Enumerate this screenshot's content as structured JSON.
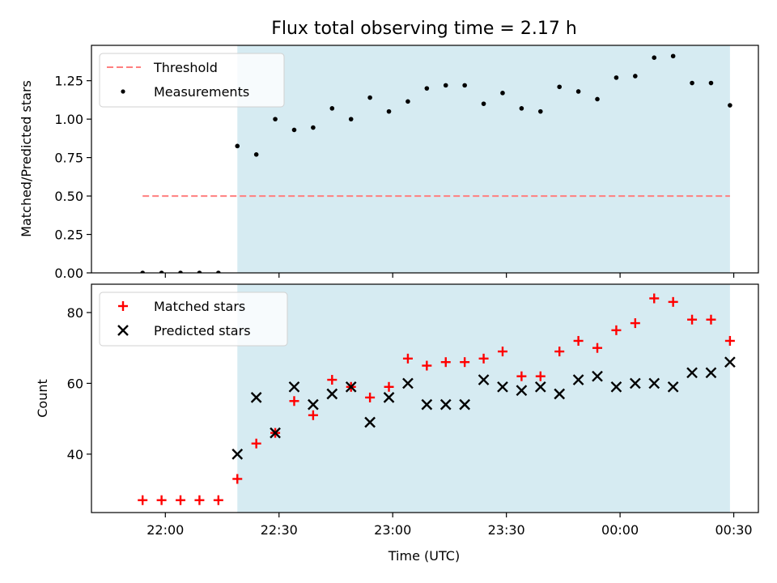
{
  "chart_data": {
    "type": "scatter",
    "title": "Flux total observing time = 2.17 h",
    "xlabel": "Time (UTC)",
    "x_ticks": [
      "22:00",
      "22:30",
      "23:00",
      "23:30",
      "00:00",
      "00:30"
    ],
    "shaded_span": {
      "from": "22:19",
      "to": "00:29",
      "color": "#add8e6"
    },
    "times": [
      "21:54",
      "21:59",
      "22:04",
      "22:09",
      "22:14",
      "22:19",
      "22:24",
      "22:29",
      "22:34",
      "22:39",
      "22:44",
      "22:49",
      "22:54",
      "22:59",
      "23:04",
      "23:09",
      "23:14",
      "23:19",
      "23:24",
      "23:29",
      "23:34",
      "23:39",
      "23:44",
      "23:49",
      "23:54",
      "23:59",
      "00:04",
      "00:09",
      "00:14",
      "00:19",
      "00:24",
      "00:29"
    ],
    "panels": [
      {
        "id": "ratio",
        "ylabel": "Matched/Predicted stars",
        "ylim": [
          0,
          1.48
        ],
        "y_ticks": [
          "0.00",
          "0.25",
          "0.50",
          "0.75",
          "1.00",
          "1.25"
        ],
        "legend_position": "top-left",
        "series": [
          {
            "name": "Threshold",
            "kind": "dashed-line",
            "color": "#ff7f7f",
            "from": "21:54",
            "to": "00:29",
            "value": 0.5
          },
          {
            "name": "Measurements",
            "kind": "dot",
            "color": "#000000",
            "values": [
              0,
              0,
              0,
              0,
              0,
              0.825,
              0.77,
              1.0,
              0.93,
              0.945,
              1.07,
              1.0,
              1.14,
              1.05,
              1.115,
              1.2,
              1.22,
              1.22,
              1.1,
              1.17,
              1.07,
              1.05,
              1.21,
              1.18,
              1.13,
              1.27,
              1.28,
              1.4,
              1.41,
              1.235,
              1.235,
              1.09
            ]
          }
        ]
      },
      {
        "id": "counts",
        "ylabel": "Count",
        "ylim": [
          23.5,
          88
        ],
        "y_ticks": [
          "40",
          "60",
          "80"
        ],
        "legend_position": "top-left",
        "series": [
          {
            "name": "Matched stars",
            "kind": "plus",
            "color": "#ff0000",
            "values": [
              27,
              27,
              27,
              27,
              27,
              33,
              43,
              46,
              55,
              51,
              61,
              59,
              56,
              59,
              67,
              65,
              66,
              66,
              67,
              69,
              62,
              62,
              69,
              72,
              70,
              75,
              77,
              84,
              83,
              78,
              78,
              72
            ]
          },
          {
            "name": "Predicted stars",
            "kind": "cross",
            "color": "#000000",
            "values": [
              null,
              null,
              null,
              null,
              null,
              40,
              56,
              46,
              59,
              54,
              57,
              59,
              49,
              56,
              60,
              54,
              54,
              54,
              61,
              59,
              58,
              59,
              57,
              61,
              62,
              59,
              60,
              60,
              59,
              63,
              63,
              66
            ]
          }
        ]
      }
    ]
  }
}
